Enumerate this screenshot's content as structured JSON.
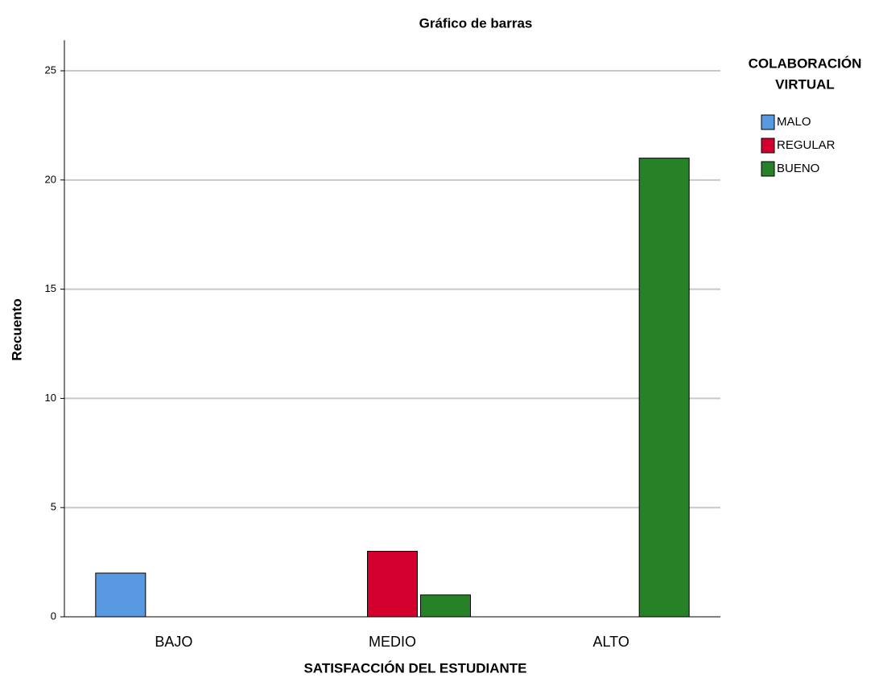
{
  "chart_data": {
    "type": "bar",
    "title": "Gráfico de barras",
    "x_label": "SATISFACCIÓN DEL ESTUDIANTE",
    "y_label": "Recuento",
    "legend_title": [
      "COLABORACIÓN",
      "VIRTUAL"
    ],
    "categories": [
      "BAJO",
      "MEDIO",
      "ALTO"
    ],
    "series": [
      {
        "name": "MALO",
        "color": "#5899e2",
        "values": [
          2,
          0,
          0
        ]
      },
      {
        "name": "REGULAR",
        "color": "#d3002d",
        "values": [
          0,
          3,
          0
        ]
      },
      {
        "name": "BUENO",
        "color": "#278227",
        "values": [
          0,
          1,
          21
        ]
      }
    ],
    "ylim": [
      0,
      26.4
    ],
    "yticks": [
      0,
      5,
      10,
      15,
      20,
      25
    ],
    "grid": true,
    "legend": "right"
  }
}
